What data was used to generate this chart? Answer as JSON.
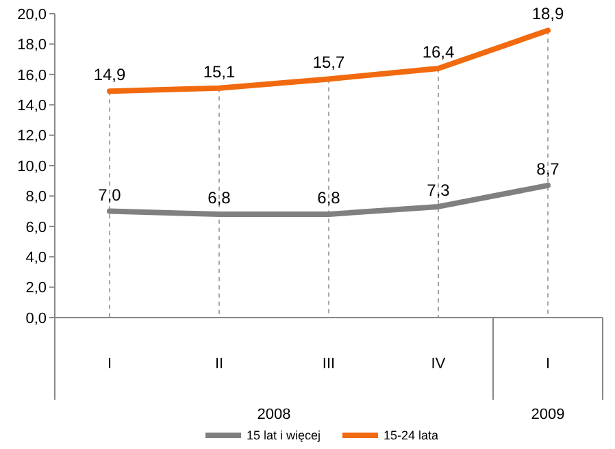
{
  "chart_data": {
    "type": "line",
    "categories": [
      "I",
      "II",
      "III",
      "IV",
      "I"
    ],
    "series": [
      {
        "name": "15 lat i więcej",
        "color": "#808080",
        "values": [
          7.0,
          6.8,
          6.8,
          7.3,
          8.7
        ],
        "value_labels": [
          "7,0",
          "6,8",
          "6,8",
          "7,3",
          "8,7"
        ]
      },
      {
        "name": "15-24 lata",
        "color": "#f26a0f",
        "values": [
          14.9,
          15.1,
          15.7,
          16.4,
          18.9
        ],
        "value_labels": [
          "14,9",
          "15,1",
          "15,7",
          "16,4",
          "18,9"
        ]
      }
    ],
    "ylim": [
      0,
      20
    ],
    "yticks": [
      {
        "value": 0,
        "label": "0,0"
      },
      {
        "value": 2,
        "label": "2,0"
      },
      {
        "value": 4,
        "label": "4,0"
      },
      {
        "value": 6,
        "label": "6,0"
      },
      {
        "value": 8,
        "label": "8,0"
      },
      {
        "value": 10,
        "label": "10,0"
      },
      {
        "value": 12,
        "label": "12,0"
      },
      {
        "value": 14,
        "label": "14,0"
      },
      {
        "value": 16,
        "label": "16,0"
      },
      {
        "value": 18,
        "label": "18,0"
      },
      {
        "value": 20,
        "label": "20,0"
      }
    ],
    "annotations": [
      "2008",
      "2009"
    ],
    "grid": "x",
    "legend": "bottom",
    "line_style": "solid"
  }
}
